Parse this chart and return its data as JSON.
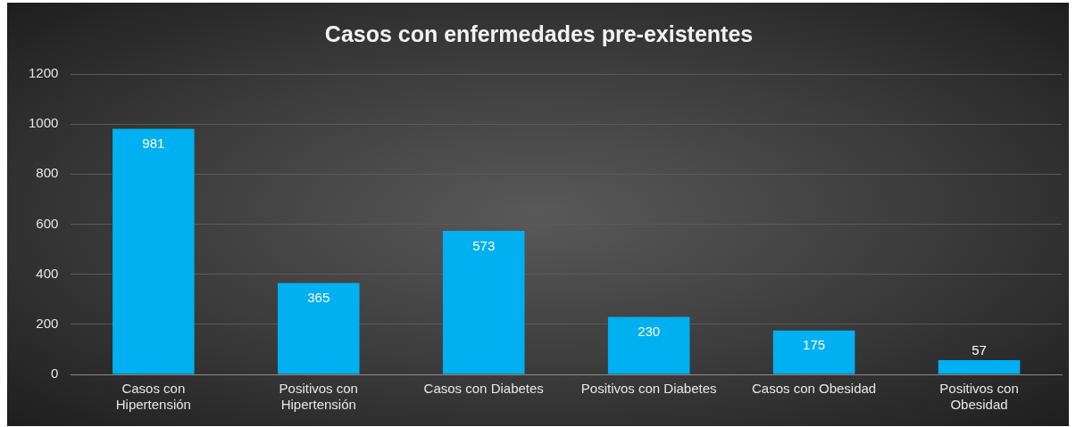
{
  "chart_data": {
    "type": "bar",
    "title": "Casos con enfermedades pre-existentes",
    "categories": [
      "Casos con\nHipertensión",
      "Positivos con\nHipertensión",
      "Casos con Diabetes",
      "Positivos con Diabetes",
      "Casos con Obesidad",
      "Positivos con\nObesidad"
    ],
    "values": [
      981,
      365,
      573,
      230,
      175,
      57
    ],
    "color": "#00b0f0",
    "ylim": [
      0,
      1200
    ],
    "yticks": [
      0,
      200,
      400,
      600,
      800,
      1000,
      1200
    ],
    "grid": "y",
    "legend": false,
    "data_labels": true
  }
}
